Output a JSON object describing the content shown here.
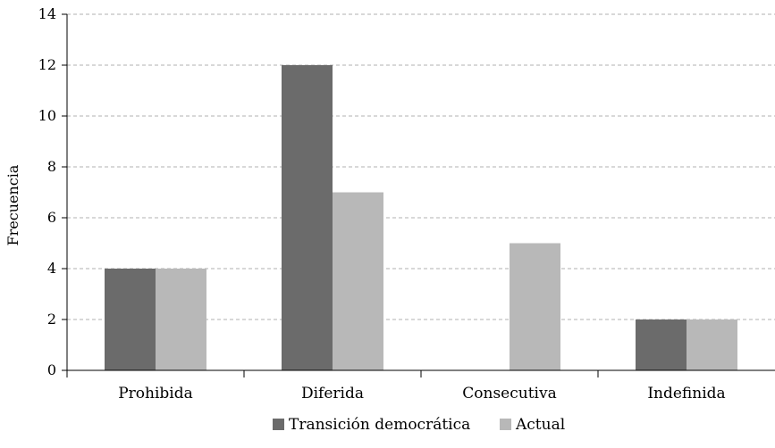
{
  "chart_data": {
    "type": "bar",
    "title": "",
    "xlabel": "",
    "ylabel": "Frecuencia",
    "categories": [
      "Prohibida",
      "Diferida",
      "Consecutiva",
      "Indefinida"
    ],
    "series": [
      {
        "name": "Transición democrática",
        "values": [
          4,
          12,
          0,
          2
        ],
        "color": "#6b6b6b"
      },
      {
        "name": "Actual",
        "values": [
          4,
          7,
          5,
          2
        ],
        "color": "#b8b8b8"
      }
    ],
    "ylim": [
      0,
      14
    ],
    "yticks": [
      0,
      2,
      4,
      6,
      8,
      10,
      12,
      14
    ],
    "grid": true,
    "gridline_style": "dashed",
    "gridline_color": "#b0b0b0",
    "legend_position": "bottom"
  }
}
